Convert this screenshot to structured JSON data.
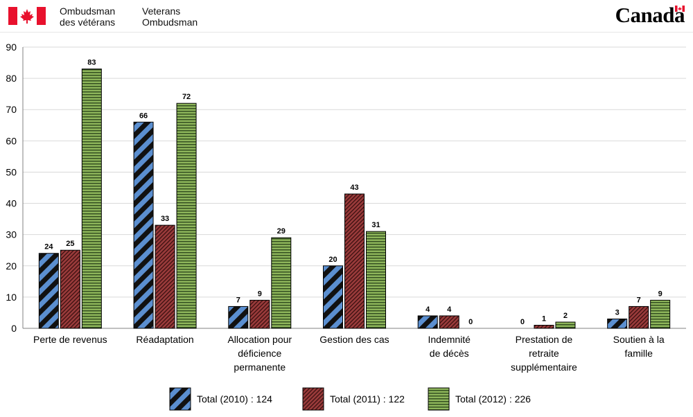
{
  "header": {
    "org_fr_line1": "Ombudsman",
    "org_fr_line2": "des vétérans",
    "org_en_line1": "Veterans",
    "org_en_line2": "Ombudsman",
    "wordmark": "Canada"
  },
  "colors": {
    "flag_red": "#e8112d",
    "series_2010": "#5b8fd0",
    "series_2011": "#9a3b3b",
    "series_2012": "#8db55a"
  },
  "chart_data": {
    "type": "bar",
    "ylim": [
      0,
      90
    ],
    "yticks": [
      0,
      10,
      20,
      30,
      40,
      50,
      60,
      70,
      80,
      90
    ],
    "grid": "horizontal",
    "legend_placement": "bottom",
    "categories": [
      [
        "Perte de revenus"
      ],
      [
        "Réadaptation"
      ],
      [
        "Allocation pour",
        "déficience",
        "permanente"
      ],
      [
        "Gestion des cas"
      ],
      [
        "Indemnité",
        "de décès"
      ],
      [
        "Prestation de",
        "retraite",
        "supplémentaire"
      ],
      [
        "Soutien à la",
        "famille"
      ]
    ],
    "series": [
      {
        "name": "Total (2010) : 124",
        "values": [
          24,
          66,
          7,
          20,
          4,
          0,
          3
        ]
      },
      {
        "name": "Total (2011) : 122",
        "values": [
          25,
          33,
          9,
          43,
          4,
          1,
          7
        ]
      },
      {
        "name": "Total (2012) : 226",
        "values": [
          83,
          72,
          29,
          31,
          0,
          2,
          9
        ]
      }
    ]
  }
}
